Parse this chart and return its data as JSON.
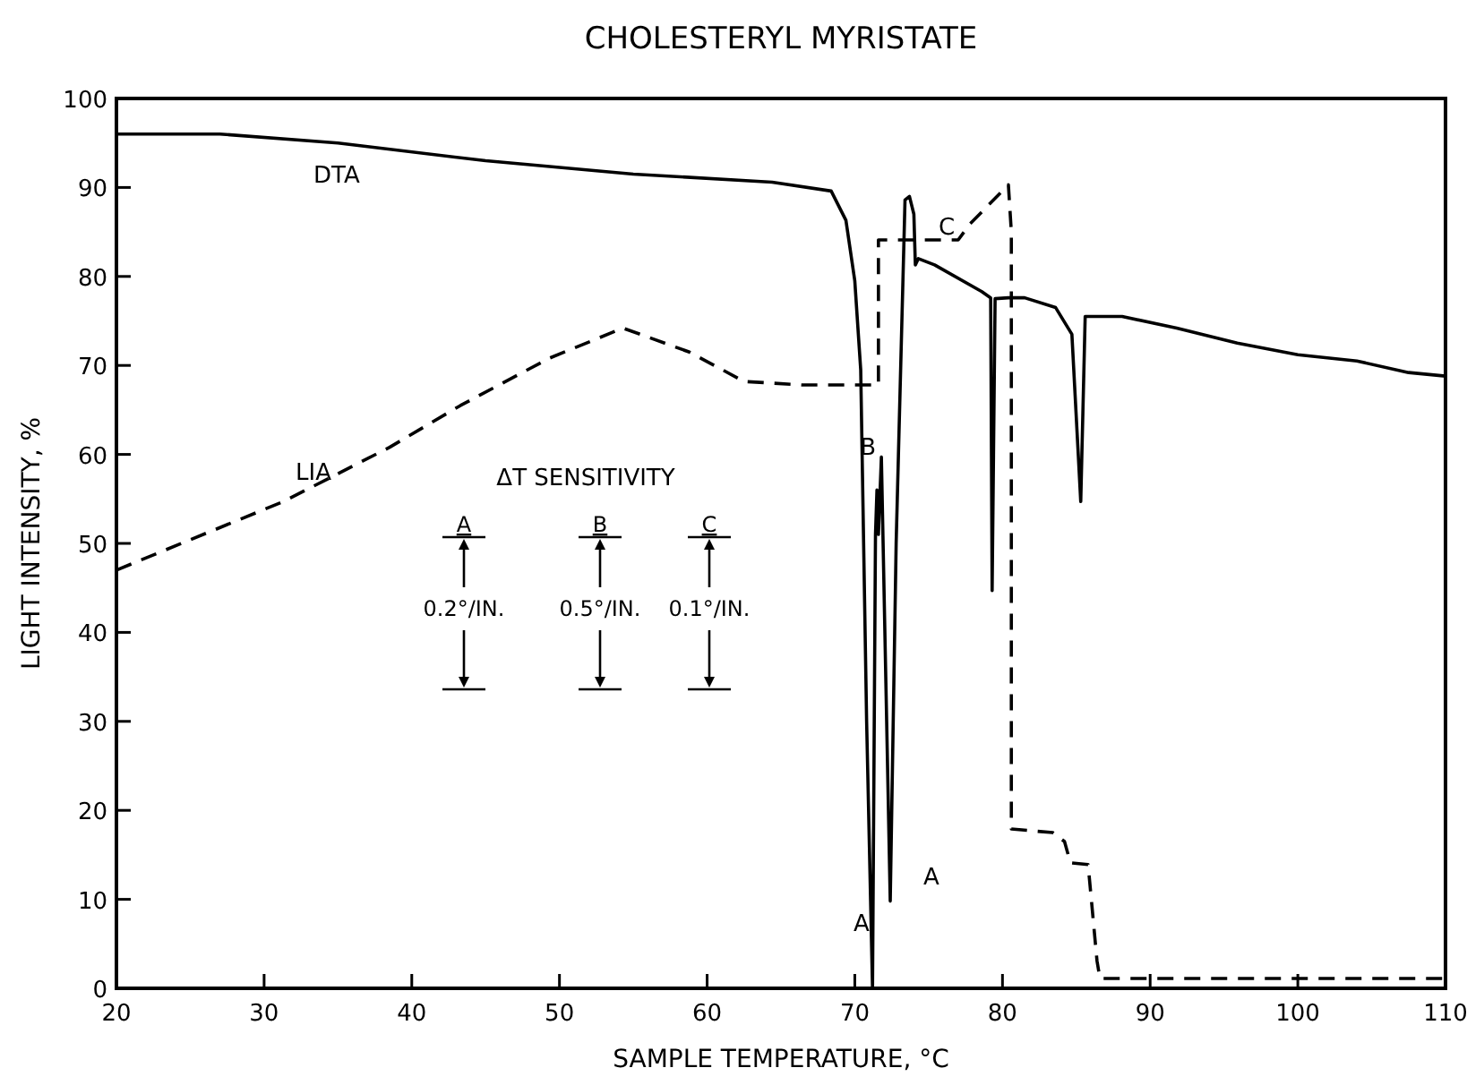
{
  "chart_data": {
    "type": "line",
    "title": "CHOLESTERYL MYRISTATE",
    "xlabel": "SAMPLE TEMPERATURE, °C",
    "ylabel": "LIGHT INTENSITY, %",
    "xlim": [
      20,
      110
    ],
    "ylim": [
      0,
      100
    ],
    "xticks": [
      20,
      30,
      40,
      50,
      60,
      70,
      80,
      90,
      100,
      110
    ],
    "yticks": [
      0,
      10,
      20,
      30,
      40,
      50,
      60,
      70,
      80,
      90,
      100
    ],
    "grid": false,
    "legend": false,
    "series": [
      {
        "name": "DTA",
        "color": "#000000",
        "line_style": "solid",
        "x": [
          20,
          27,
          35,
          45,
          55,
          64.4,
          68.4,
          69.4,
          70,
          70.4,
          70.8,
          71.2,
          71.4,
          71.5,
          71.6,
          71.8,
          72.4,
          72.8,
          73.4,
          73.7,
          74,
          74.1,
          74.3,
          75.4,
          78.6,
          79.2,
          79.3,
          79.5,
          80.4,
          81.5,
          83.6,
          84.7,
          85.3,
          85.6,
          88.1,
          91.8,
          95.9,
          100,
          104,
          107.5,
          110
        ],
        "values": [
          96,
          96,
          95,
          93,
          91.5,
          90.6,
          89.6,
          86.3,
          79.5,
          69.5,
          30,
          0,
          51,
          56,
          51,
          59.7,
          9.8,
          50,
          88.6,
          89,
          87,
          81.3,
          82,
          81.3,
          78.3,
          77.6,
          44.7,
          77.5,
          77.6,
          77.6,
          76.5,
          73.5,
          54.7,
          75.5,
          75.5,
          74.2,
          72.5,
          71.2,
          70.5,
          69.2,
          68.8
        ]
      },
      {
        "name": "LIA",
        "color": "#000000",
        "line_style": "dashed",
        "x": [
          20,
          31.3,
          38.5,
          43.3,
          49.3,
          54.3,
          58.8,
          62.5,
          66.5,
          71.6,
          71.6,
          77,
          77.8,
          80.4,
          80.6,
          80.6,
          83.4,
          84.2,
          84.6,
          85.8,
          86.4,
          86.6,
          110
        ],
        "values": [
          47,
          54.7,
          60.8,
          65.5,
          70.8,
          74.2,
          71.5,
          68.2,
          67.8,
          67.8,
          84.1,
          84.1,
          85.9,
          90.3,
          85,
          17.9,
          17.5,
          16.5,
          14.1,
          13.9,
          3.1,
          1.1,
          1.1
        ]
      }
    ],
    "annotations": [
      "B",
      "C",
      "A",
      "A",
      "ΔT SENSITIVITY",
      "A",
      "B",
      "C",
      "0.2°/IN.",
      "0.5°/IN.",
      "0.1°/IN."
    ]
  }
}
